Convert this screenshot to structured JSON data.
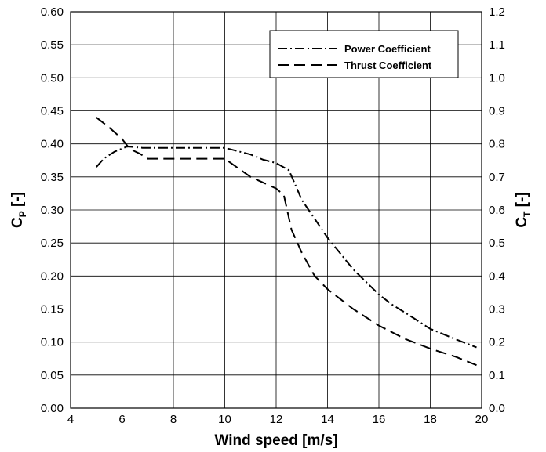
{
  "chart_data": {
    "type": "line",
    "xlabel": "Wind speed [m/s]",
    "ylabel_left": {
      "main": "C",
      "sub": "P",
      "suffix": " [-]"
    },
    "ylabel_right": {
      "main": "C",
      "sub": "T",
      "suffix": " [-]"
    },
    "xlim": [
      4,
      20
    ],
    "ylim_left": [
      0,
      0.6
    ],
    "ylim_right": [
      0,
      1.2
    ],
    "x_ticks": [
      "4",
      "6",
      "8",
      "10",
      "12",
      "14",
      "16",
      "18",
      "20"
    ],
    "y_left_ticks": [
      "0.00",
      "0.05",
      "0.10",
      "0.15",
      "0.20",
      "0.25",
      "0.30",
      "0.35",
      "0.40",
      "0.45",
      "0.50",
      "0.55",
      "0.60"
    ],
    "y_right_ticks": [
      "0.0",
      "0.1",
      "0.2",
      "0.3",
      "0.4",
      "0.5",
      "0.6",
      "0.7",
      "0.8",
      "0.9",
      "1.0",
      "1.1",
      "1.2"
    ],
    "grid": true,
    "legend_position": "top-right",
    "series": [
      {
        "name": "Power Coefficient",
        "axis": "left",
        "style": "dash-dot",
        "color": "#000000",
        "x": [
          5,
          5.3,
          5.7,
          6.2,
          6.8,
          8,
          9,
          10,
          11,
          11.5,
          12,
          12.5,
          13,
          14,
          15,
          16,
          16.5,
          17,
          18,
          19,
          19.8
        ],
        "y": [
          0.365,
          0.378,
          0.388,
          0.396,
          0.394,
          0.394,
          0.394,
          0.394,
          0.384,
          0.376,
          0.371,
          0.36,
          0.315,
          0.258,
          0.21,
          0.172,
          0.157,
          0.145,
          0.12,
          0.104,
          0.092
        ]
      },
      {
        "name": "Thrust Coefficient",
        "axis": "right",
        "style": "dashed",
        "color": "#000000",
        "x": [
          5,
          5.5,
          6,
          6.3,
          6.7,
          7,
          8,
          9,
          10,
          11,
          12,
          12.3,
          12.6,
          13,
          13.5,
          14,
          15,
          16,
          17,
          18,
          19,
          19.8
        ],
        "y": [
          0.88,
          0.85,
          0.815,
          0.785,
          0.77,
          0.755,
          0.755,
          0.755,
          0.755,
          0.7,
          0.665,
          0.645,
          0.54,
          0.47,
          0.4,
          0.36,
          0.3,
          0.25,
          0.21,
          0.18,
          0.155,
          0.13
        ]
      }
    ]
  }
}
